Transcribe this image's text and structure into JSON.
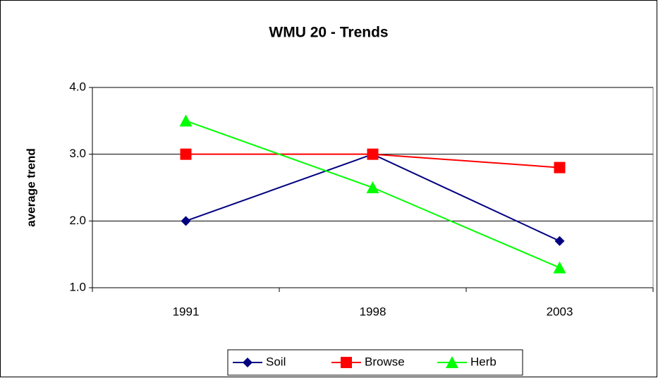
{
  "chart_data": {
    "type": "line",
    "title": "WMU 20 - Trends",
    "y_label": "average trend",
    "categories": [
      "1991",
      "1998",
      "2003"
    ],
    "series": [
      {
        "name": "Soil",
        "color": "#000080",
        "marker": "diamond",
        "values": [
          2.0,
          3.0,
          1.7
        ]
      },
      {
        "name": "Browse",
        "color": "#ff0000",
        "marker": "square",
        "values": [
          3.0,
          3.0,
          2.8
        ]
      },
      {
        "name": "Herb",
        "color": "#00ff00",
        "marker": "triangle",
        "values": [
          3.5,
          2.5,
          1.3
        ]
      }
    ],
    "ylim": [
      1,
      4
    ],
    "yticks": [
      {
        "value": 1,
        "label": "1.0"
      },
      {
        "value": 2,
        "label": "2.0"
      },
      {
        "value": 3,
        "label": "3.0"
      },
      {
        "value": 4,
        "label": "4.0"
      }
    ],
    "grid": true,
    "legend": "bottom"
  }
}
